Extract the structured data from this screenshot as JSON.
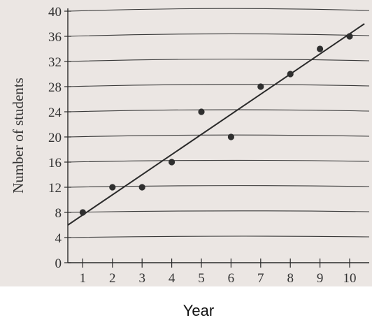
{
  "chart_data": {
    "type": "scatter",
    "title": "",
    "xlabel": "Year",
    "ylabel": "Number of students",
    "xlim": [
      0.5,
      10.5
    ],
    "ylim": [
      0,
      40
    ],
    "x_ticks": [
      1,
      2,
      3,
      4,
      5,
      6,
      7,
      8,
      9,
      10
    ],
    "x_tick_labels": [
      "1",
      "2",
      "3",
      "4",
      "5",
      "6",
      "7",
      "8",
      "9",
      "10"
    ],
    "y_ticks": [
      0,
      4,
      8,
      12,
      16,
      20,
      24,
      28,
      32,
      36,
      40
    ],
    "y_tick_labels": [
      "0",
      "4",
      "8",
      "12",
      "16",
      "20",
      "24",
      "28",
      "32",
      "36",
      "40"
    ],
    "grid": "horizontal",
    "points": [
      {
        "x": 1,
        "y": 8
      },
      {
        "x": 2,
        "y": 12
      },
      {
        "x": 3,
        "y": 12
      },
      {
        "x": 4,
        "y": 16
      },
      {
        "x": 5,
        "y": 24
      },
      {
        "x": 6,
        "y": 20
      },
      {
        "x": 7,
        "y": 28
      },
      {
        "x": 8,
        "y": 30
      },
      {
        "x": 9,
        "y": 34
      },
      {
        "x": 10,
        "y": 36
      }
    ],
    "trend_line": {
      "x": [
        0.5,
        10.5
      ],
      "y": [
        6,
        38
      ]
    }
  }
}
